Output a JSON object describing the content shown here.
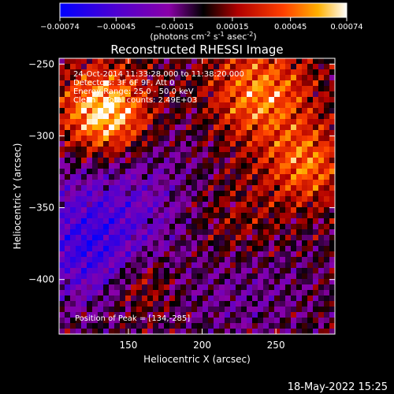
{
  "colorbar": {
    "tick_labels": [
      "-0.00074",
      "-0.00045",
      "-0.00015",
      "0.00015",
      "0.00045",
      "0.00074"
    ],
    "tick_values": [
      -0.00074,
      -0.00045,
      -0.00015,
      0.00015,
      0.00045,
      0.00074
    ],
    "range": [
      -0.00074,
      0.00074
    ],
    "unit_label": "(photons cm-2 s-1 asec-2)",
    "colors": [
      "#0000ff",
      "#5a00c8",
      "#8a00a0",
      "#000000",
      "#b00000",
      "#ff5000",
      "#ffb000",
      "#ffffff"
    ]
  },
  "chart_data": {
    "type": "heatmap",
    "title": "Reconstructed RHESSI Image",
    "xlabel": "Heliocentric X (arcsec)",
    "ylabel": "Heliocentric Y (arcsec)",
    "xlim": [
      103,
      290
    ],
    "ylim": [
      -438,
      -246
    ],
    "x_ticks": [
      150,
      200,
      250
    ],
    "y_ticks": [
      -250,
      -300,
      -350,
      -400
    ],
    "x_tick_labels": [
      "150",
      "200",
      "250"
    ],
    "y_tick_labels": [
      "−250",
      "−300",
      "−350",
      "−400"
    ],
    "peak": [
      134,
      -285
    ],
    "annotations": [
      "24-Oct-2014 11:33:28.000 to 11:38:20.000",
      "Detectors: 3F 6F 9F, Att 0",
      "Energy Range: 25.0 - 50.0 keV",
      "Clean    Total counts: 2.49E+03"
    ],
    "peak_label": "Position of Peak = [134,-285]"
  },
  "footer": {
    "timestamp": "18-May-2022 15:25"
  }
}
